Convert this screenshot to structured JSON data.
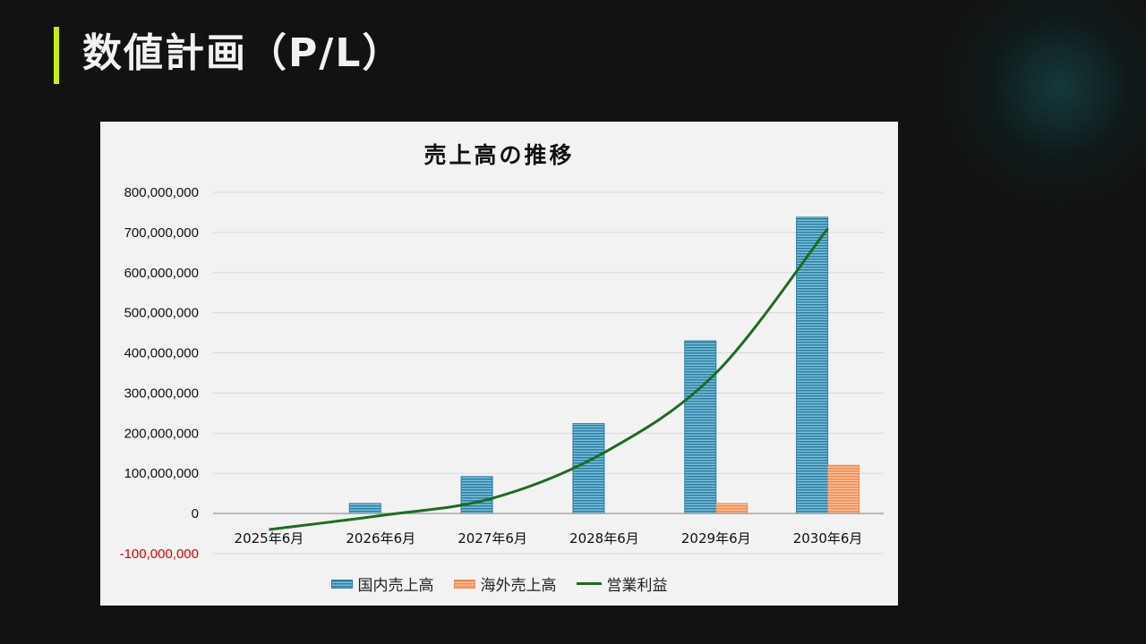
{
  "slide": {
    "title": "数値計画（P/L）"
  },
  "colors": {
    "accent": "#c8f000",
    "domestic": "#2e86ab",
    "overseas": "#f08a4b",
    "profit": "#1e6b22",
    "negative_tick": "#e00000"
  },
  "chart_data": {
    "type": "bar",
    "title": "売上高の推移",
    "categories": [
      "2025年6月",
      "2026年6月",
      "2027年6月",
      "2028年6月",
      "2029年6月",
      "2030年6月"
    ],
    "series": [
      {
        "name": "国内売上高",
        "type": "bar",
        "values": [
          0,
          25000000,
          92000000,
          224000000,
          430000000,
          738000000
        ]
      },
      {
        "name": "海外売上高",
        "type": "bar",
        "values": [
          0,
          0,
          0,
          0,
          25000000,
          120000000
        ]
      },
      {
        "name": "営業利益",
        "type": "line",
        "values": [
          -40000000,
          -5000000,
          38000000,
          152000000,
          350000000,
          710000000
        ]
      }
    ],
    "ylim": [
      -100000000,
      800000000
    ],
    "yticks": [
      "800,000,000",
      "700,000,000",
      "600,000,000",
      "500,000,000",
      "400,000,000",
      "300,000,000",
      "200,000,000",
      "100,000,000",
      "0",
      "-100,000,000"
    ],
    "grid": true,
    "legend": "bottom"
  }
}
